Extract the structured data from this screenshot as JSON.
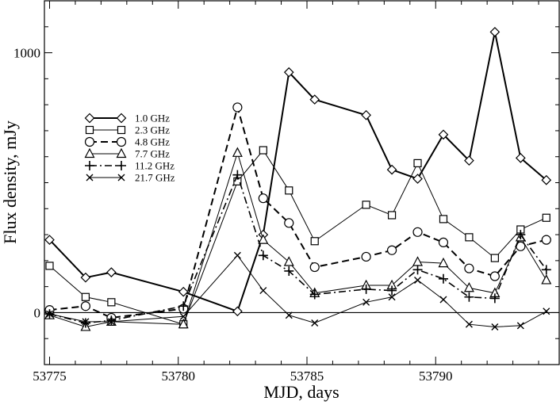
{
  "chart_data": {
    "type": "line",
    "title": "",
    "xlabel": "MJD, days",
    "ylabel": "Flux density, mJy",
    "xlim": [
      53774.8,
      53794.8
    ],
    "ylim": [
      -200,
      1200
    ],
    "xticks": [
      53775,
      53780,
      53785,
      53790
    ],
    "yticks": [
      0,
      1000
    ],
    "xtick_labels": [
      "53775",
      "53780",
      "53785",
      "53790"
    ],
    "ytick_labels": [
      "0",
      "1000"
    ],
    "zero_line": true,
    "grid": false,
    "legend_position": "left",
    "series": [
      {
        "name": "1.0 GHz",
        "marker": "diamond",
        "line": "solid-thick",
        "x": [
          53775.0,
          53776.4,
          53777.4,
          53780.2,
          53782.3,
          53783.3,
          53784.3,
          53785.3,
          53787.3,
          53788.3,
          53789.3,
          53790.3,
          53791.3,
          53792.3,
          53793.3,
          53794.3
        ],
        "y": [
          280,
          135,
          155,
          80,
          5,
          300,
          925,
          820,
          760,
          550,
          515,
          685,
          585,
          1080,
          595,
          510
        ]
      },
      {
        "name": "2.3 GHz",
        "marker": "square",
        "line": "solid-thin",
        "x": [
          53775.0,
          53776.4,
          53777.4,
          53780.2,
          53782.3,
          53783.3,
          53784.3,
          53785.3,
          53787.3,
          53788.3,
          53789.3,
          53790.3,
          53791.3,
          53792.3,
          53793.3,
          53794.3
        ],
        "y": [
          180,
          60,
          40,
          -45,
          505,
          625,
          470,
          275,
          415,
          375,
          575,
          360,
          290,
          210,
          320,
          365
        ]
      },
      {
        "name": "4.8 GHz",
        "marker": "circle",
        "line": "dashed",
        "x": [
          53775.0,
          53776.4,
          53777.4,
          53780.2,
          53782.3,
          53783.3,
          53784.3,
          53785.3,
          53787.3,
          53788.3,
          53789.3,
          53790.3,
          53791.3,
          53792.3,
          53793.3,
          53794.3
        ],
        "y": [
          10,
          25,
          -20,
          15,
          790,
          440,
          345,
          175,
          215,
          240,
          310,
          270,
          170,
          140,
          255,
          280
        ]
      },
      {
        "name": "7.7 GHz",
        "marker": "triangle",
        "line": "solid-thin",
        "x": [
          53775.0,
          53776.4,
          53777.4,
          53780.2,
          53782.3,
          53783.3,
          53784.3,
          53785.3,
          53787.3,
          53788.3,
          53789.3,
          53790.3,
          53791.3,
          53792.3,
          53793.3,
          53794.3
        ],
        "y": [
          -10,
          -55,
          -35,
          -45,
          615,
          280,
          195,
          75,
          105,
          105,
          195,
          190,
          95,
          75,
          290,
          125
        ]
      },
      {
        "name": "11.2 GHz",
        "marker": "plus",
        "line": "dashdot",
        "x": [
          53775.0,
          53776.4,
          53777.4,
          53780.2,
          53782.3,
          53783.3,
          53784.3,
          53785.3,
          53787.3,
          53788.3,
          53789.3,
          53790.3,
          53791.3,
          53792.3,
          53793.3,
          53794.3
        ],
        "y": [
          -5,
          -40,
          -30,
          25,
          530,
          220,
          160,
          70,
          90,
          85,
          165,
          130,
          60,
          55,
          300,
          165
        ]
      },
      {
        "name": "21.7 GHz",
        "marker": "x",
        "line": "solid-thin",
        "x": [
          53775.0,
          53776.4,
          53777.4,
          53780.2,
          53782.3,
          53783.3,
          53784.3,
          53785.3,
          53787.3,
          53788.3,
          53789.3,
          53790.3,
          53791.3,
          53792.3,
          53793.3,
          53794.3
        ],
        "y": [
          -5,
          -35,
          -35,
          -15,
          220,
          85,
          -10,
          -40,
          40,
          60,
          125,
          50,
          -45,
          -55,
          -50,
          5
        ]
      }
    ]
  }
}
